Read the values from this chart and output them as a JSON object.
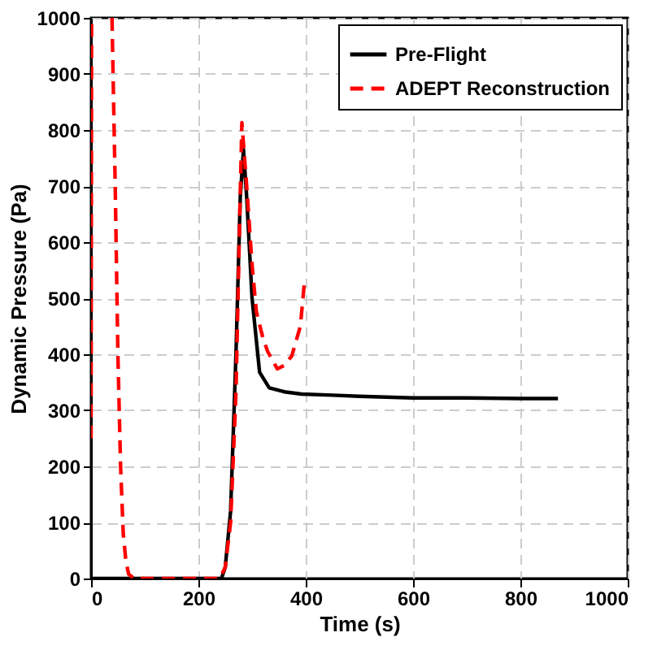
{
  "chart_data": {
    "type": "line",
    "xlabel": "Time (s)",
    "ylabel": "Dynamic Pressure (Pa)",
    "xlim": [
      0,
      1000
    ],
    "ylim": [
      0,
      1000
    ],
    "xticks": [
      0,
      200,
      400,
      600,
      800,
      1000
    ],
    "yticks": [
      0,
      100,
      200,
      300,
      400,
      500,
      600,
      700,
      800,
      900,
      1000
    ],
    "grid": true,
    "legend": "top right",
    "series": [
      {
        "name": "Pre-Flight",
        "color": "#000000",
        "line_style": "solid",
        "x": [
          0,
          100,
          200,
          243,
          250,
          260,
          270,
          278,
          284,
          290,
          300,
          314,
          332,
          360,
          392,
          450,
          500,
          600,
          700,
          800,
          870
        ],
        "values": [
          0,
          0,
          0,
          0,
          20,
          120,
          400,
          680,
          765,
          680,
          500,
          368,
          340,
          333,
          329,
          327,
          325,
          322,
          322,
          321,
          321
        ]
      },
      {
        "name": "ADEPT Reconstruction",
        "color": "#ff0000",
        "line_style": "dashed",
        "x": [
          0,
          1,
          20,
          39,
          45,
          50,
          55,
          60,
          65,
          70,
          80,
          120,
          200,
          240,
          250,
          260,
          270,
          276,
          281,
          290,
          300,
          308,
          320,
          329,
          347,
          360,
          374,
          390,
          398
        ],
        "values": [
          250,
          1000,
          null,
          1000,
          700,
          400,
          200,
          80,
          30,
          8,
          0,
          0,
          0,
          0,
          20,
          100,
          330,
          600,
          813,
          700,
          560,
          476,
          430,
          405,
          374,
          380,
          397,
          450,
          533
        ]
      }
    ]
  }
}
